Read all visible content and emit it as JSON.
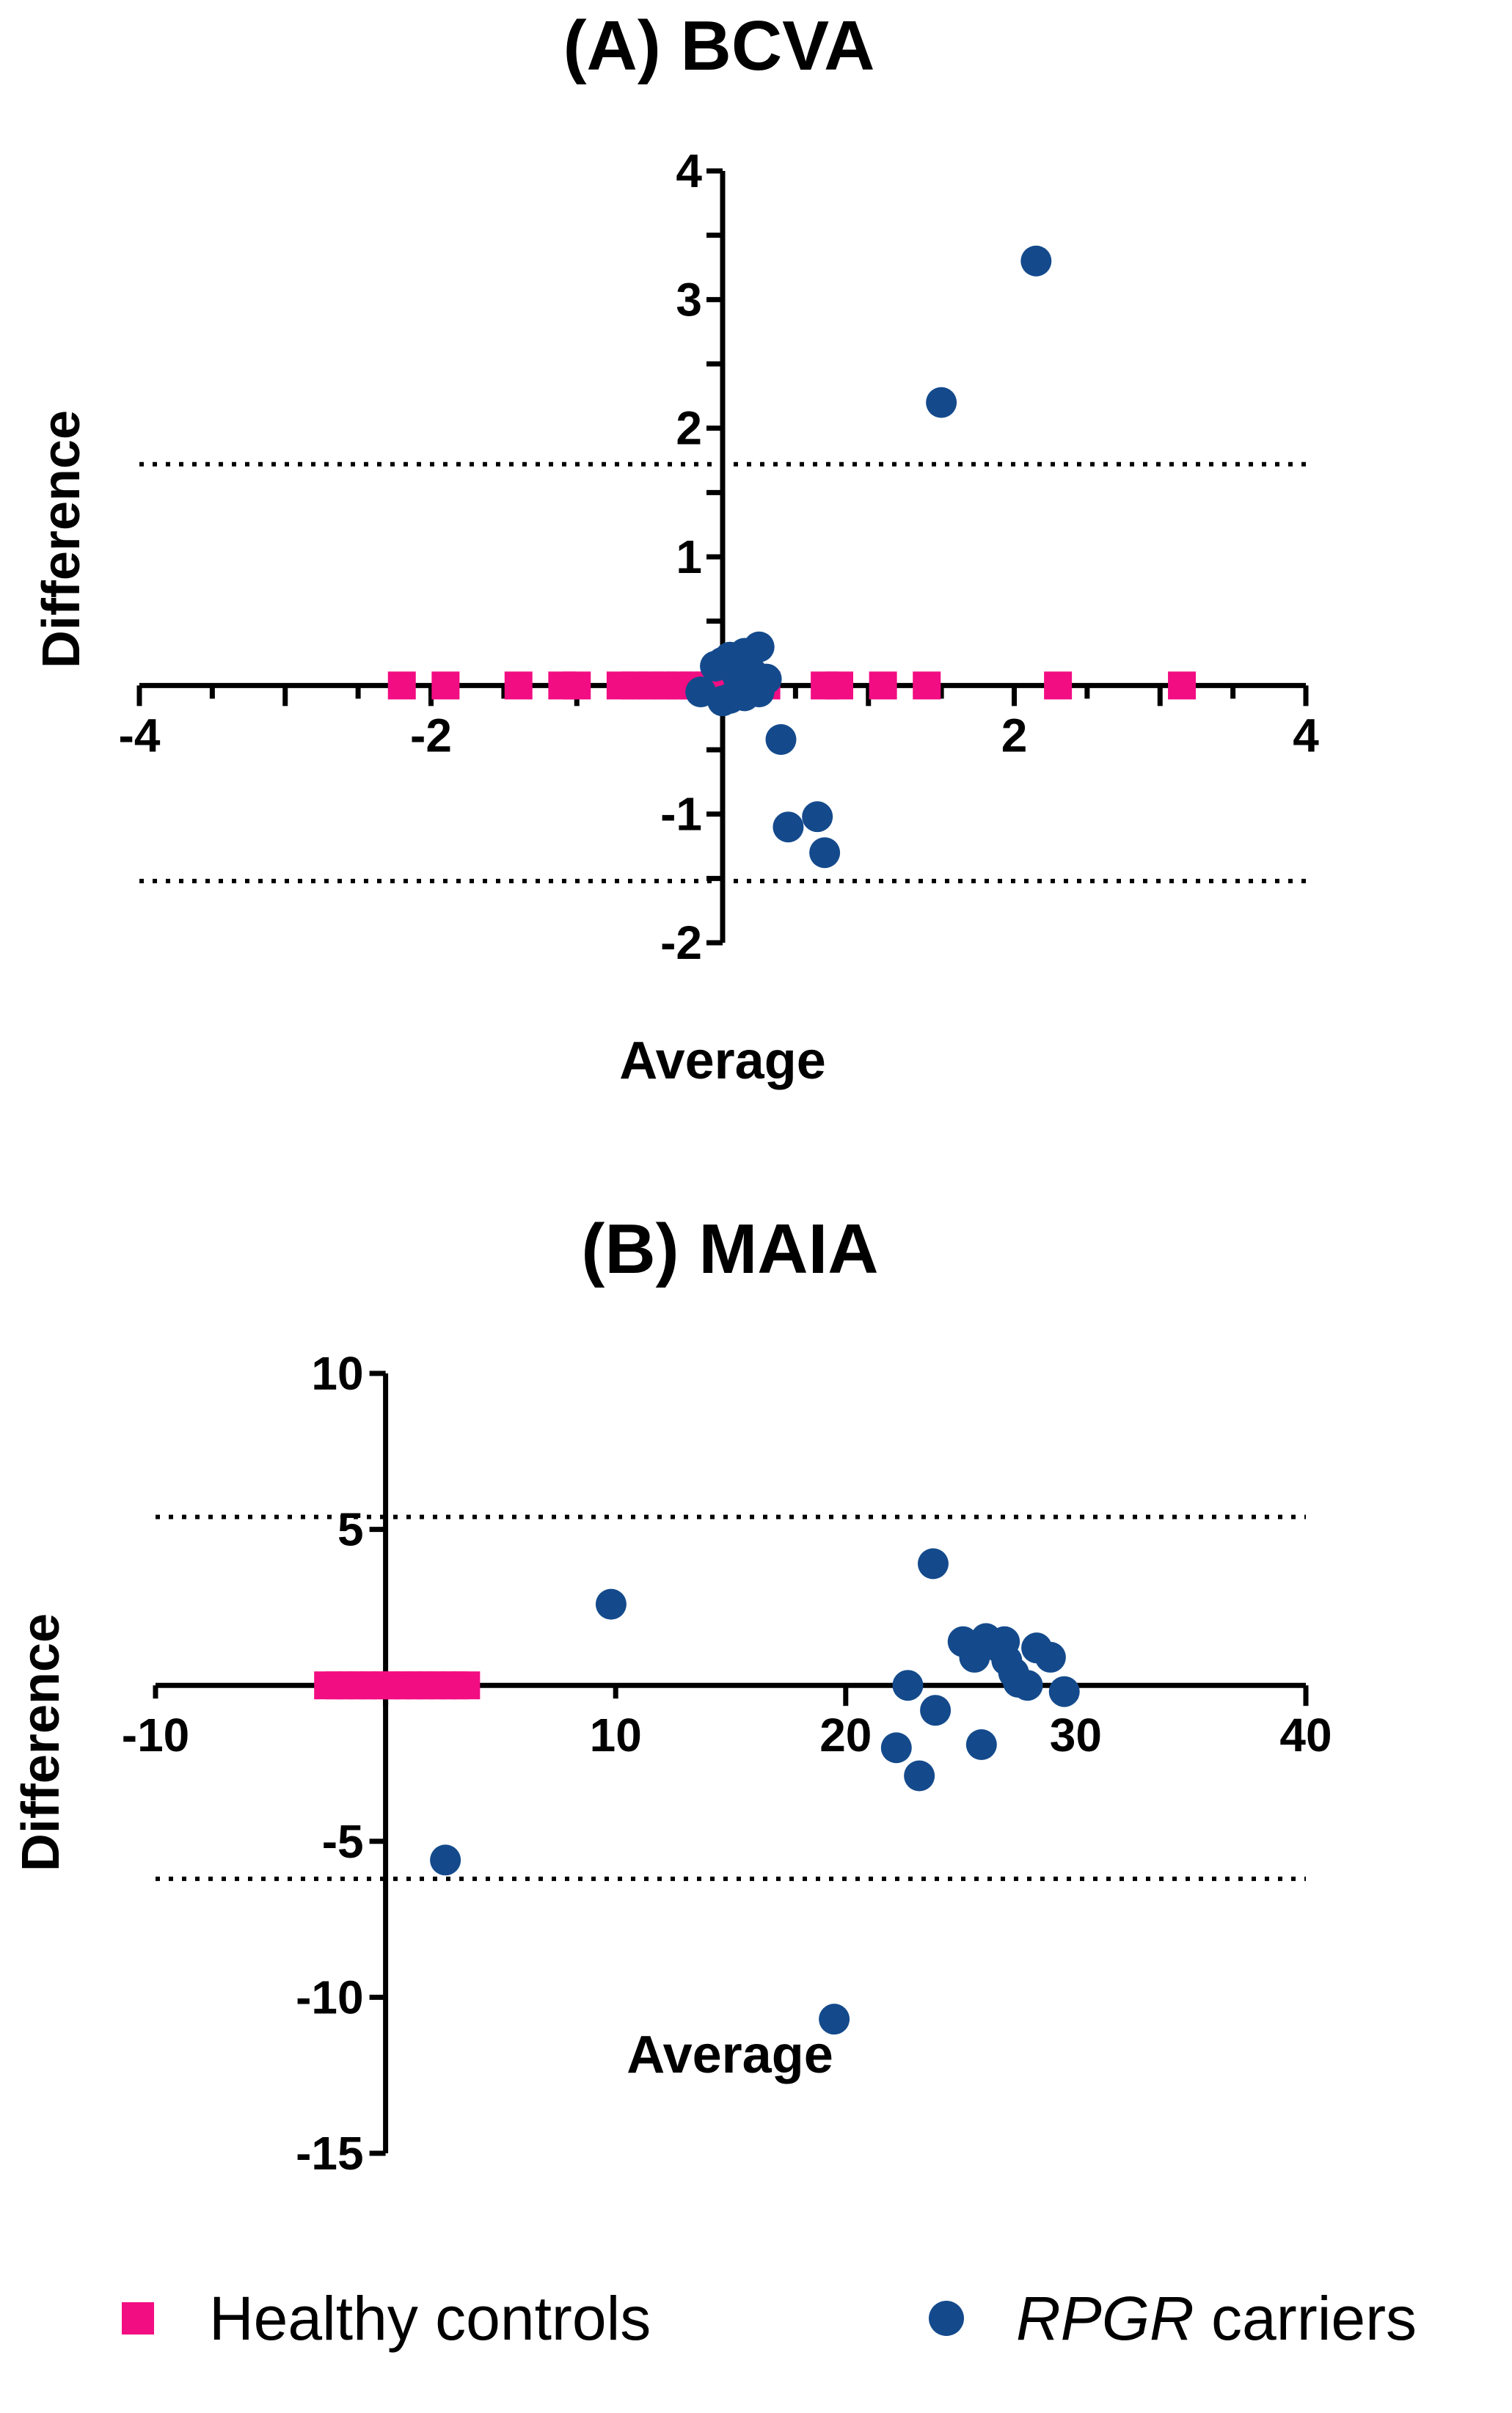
{
  "legend": {
    "items": [
      {
        "label": "Healthy controls",
        "label_parts": [
          {
            "text": "Healthy controls",
            "italic": false
          }
        ],
        "marker": "square",
        "color": "#F20D83"
      },
      {
        "label": "RPGR carriers",
        "label_parts": [
          {
            "text": "RPGR",
            "italic": true
          },
          {
            "text": " carriers",
            "italic": false
          }
        ],
        "marker": "circle",
        "color": "#144A8C"
      }
    ]
  },
  "chart_data": [
    {
      "type": "scatter",
      "title": "(A) BCVA",
      "xlabel": "Average",
      "ylabel": "Difference",
      "xlim": [
        -4,
        4
      ],
      "ylim": [
        -2,
        4
      ],
      "xticks": [
        -4,
        -2,
        2,
        4
      ],
      "xtick_labels": [
        "-4",
        "-2",
        "2",
        "4"
      ],
      "yticks": [
        4,
        3,
        2,
        1,
        -1,
        -2
      ],
      "ytick_labels": [
        "4",
        "3",
        "2",
        "1",
        "-1",
        "-2"
      ],
      "x_minor_step": 0.5,
      "y_minor_step": 0.5,
      "grid": false,
      "reference_lines": [
        1.72,
        -1.52
      ],
      "series": [
        {
          "name": "Healthy controls",
          "marker": "square",
          "color": "#F20D83",
          "points": [
            {
              "x": -2.2,
              "y": 0
            },
            {
              "x": -1.9,
              "y": 0
            },
            {
              "x": -1.4,
              "y": 0
            },
            {
              "x": -1.1,
              "y": 0
            },
            {
              "x": -1.0,
              "y": 0
            },
            {
              "x": -0.7,
              "y": 0
            },
            {
              "x": -0.6,
              "y": 0
            },
            {
              "x": -0.5,
              "y": 0
            },
            {
              "x": -0.4,
              "y": 0
            },
            {
              "x": -0.3,
              "y": 0
            },
            {
              "x": -0.2,
              "y": 0
            },
            {
              "x": -0.1,
              "y": 0
            },
            {
              "x": 0.0,
              "y": 0
            },
            {
              "x": 0.1,
              "y": 0
            },
            {
              "x": 0.2,
              "y": 0
            },
            {
              "x": 0.3,
              "y": 0
            },
            {
              "x": 0.7,
              "y": 0
            },
            {
              "x": 0.8,
              "y": 0
            },
            {
              "x": 1.1,
              "y": 0
            },
            {
              "x": 1.4,
              "y": 0
            },
            {
              "x": 2.3,
              "y": 0
            },
            {
              "x": 3.15,
              "y": 0
            }
          ]
        },
        {
          "name": "RPGR carriers",
          "marker": "circle",
          "color": "#144A8C",
          "points": [
            {
              "x": 2.15,
              "y": 3.3
            },
            {
              "x": 1.5,
              "y": 2.2
            },
            {
              "x": 0.4,
              "y": -0.42
            },
            {
              "x": 0.45,
              "y": -1.1
            },
            {
              "x": 0.65,
              "y": -1.02
            },
            {
              "x": 0.7,
              "y": -1.3
            },
            {
              "x": 0.25,
              "y": 0.3
            },
            {
              "x": 0.15,
              "y": 0.25
            },
            {
              "x": 0.1,
              "y": 0.2
            },
            {
              "x": 0.05,
              "y": 0.22
            },
            {
              "x": 0.0,
              "y": 0.18
            },
            {
              "x": -0.05,
              "y": 0.15
            },
            {
              "x": 0.2,
              "y": 0.1
            },
            {
              "x": 0.3,
              "y": 0.05
            },
            {
              "x": 0.1,
              "y": 0.08
            },
            {
              "x": -0.15,
              "y": -0.05
            },
            {
              "x": 0.05,
              "y": -0.1
            },
            {
              "x": 0.15,
              "y": -0.08
            },
            {
              "x": 0.25,
              "y": -0.05
            },
            {
              "x": 0.0,
              "y": -0.12
            }
          ]
        }
      ]
    },
    {
      "type": "scatter",
      "title": "(B) MAIA",
      "xlabel": "Average",
      "ylabel": "Difference",
      "xlim": [
        -10,
        40
      ],
      "ylim": [
        -15,
        10
      ],
      "xticks": [
        -10,
        10,
        20,
        30,
        40
      ],
      "xtick_labels": [
        "-10",
        "10",
        "20",
        "30",
        "40"
      ],
      "yticks": [
        10,
        5,
        -5,
        -10,
        -15
      ],
      "ytick_labels": [
        "10",
        "5",
        "-5",
        "-10",
        "-15"
      ],
      "x_minor_step": 10,
      "y_minor_step": 5,
      "grid": false,
      "reference_lines": [
        5.4,
        -6.2
      ],
      "series": [
        {
          "name": "Healthy controls",
          "marker": "square",
          "color": "#F20D83",
          "points": [
            {
              "x": -2.5,
              "y": 0
            },
            {
              "x": -2.0,
              "y": 0
            },
            {
              "x": -1.5,
              "y": 0
            },
            {
              "x": -1.0,
              "y": 0
            },
            {
              "x": -0.5,
              "y": 0
            },
            {
              "x": 0.0,
              "y": 0
            },
            {
              "x": 0.5,
              "y": 0
            },
            {
              "x": 1.0,
              "y": 0
            },
            {
              "x": 1.5,
              "y": 0
            },
            {
              "x": 2.0,
              "y": 0
            },
            {
              "x": 2.5,
              "y": 0
            },
            {
              "x": 3.0,
              "y": 0
            },
            {
              "x": 3.5,
              "y": 0
            }
          ]
        },
        {
          "name": "RPGR carriers",
          "marker": "circle",
          "color": "#144A8C",
          "points": [
            {
              "x": 2.6,
              "y": -5.6
            },
            {
              "x": 9.8,
              "y": 2.6
            },
            {
              "x": 19.5,
              "y": -10.7
            },
            {
              "x": 23.8,
              "y": 3.9
            },
            {
              "x": 22.7,
              "y": 0.0
            },
            {
              "x": 22.2,
              "y": -2.0
            },
            {
              "x": 23.2,
              "y": -2.9
            },
            {
              "x": 23.9,
              "y": -0.8
            },
            {
              "x": 25.9,
              "y": -1.9
            },
            {
              "x": 25.1,
              "y": 1.4
            },
            {
              "x": 25.6,
              "y": 0.9
            },
            {
              "x": 26.1,
              "y": 1.5
            },
            {
              "x": 26.7,
              "y": 1.2
            },
            {
              "x": 26.9,
              "y": 1.4
            },
            {
              "x": 27.0,
              "y": 0.8
            },
            {
              "x": 27.3,
              "y": 0.4
            },
            {
              "x": 27.5,
              "y": 0.1
            },
            {
              "x": 27.9,
              "y": 0.0
            },
            {
              "x": 28.3,
              "y": 1.2
            },
            {
              "x": 28.9,
              "y": 0.9
            },
            {
              "x": 29.5,
              "y": -0.2
            }
          ]
        }
      ]
    }
  ]
}
